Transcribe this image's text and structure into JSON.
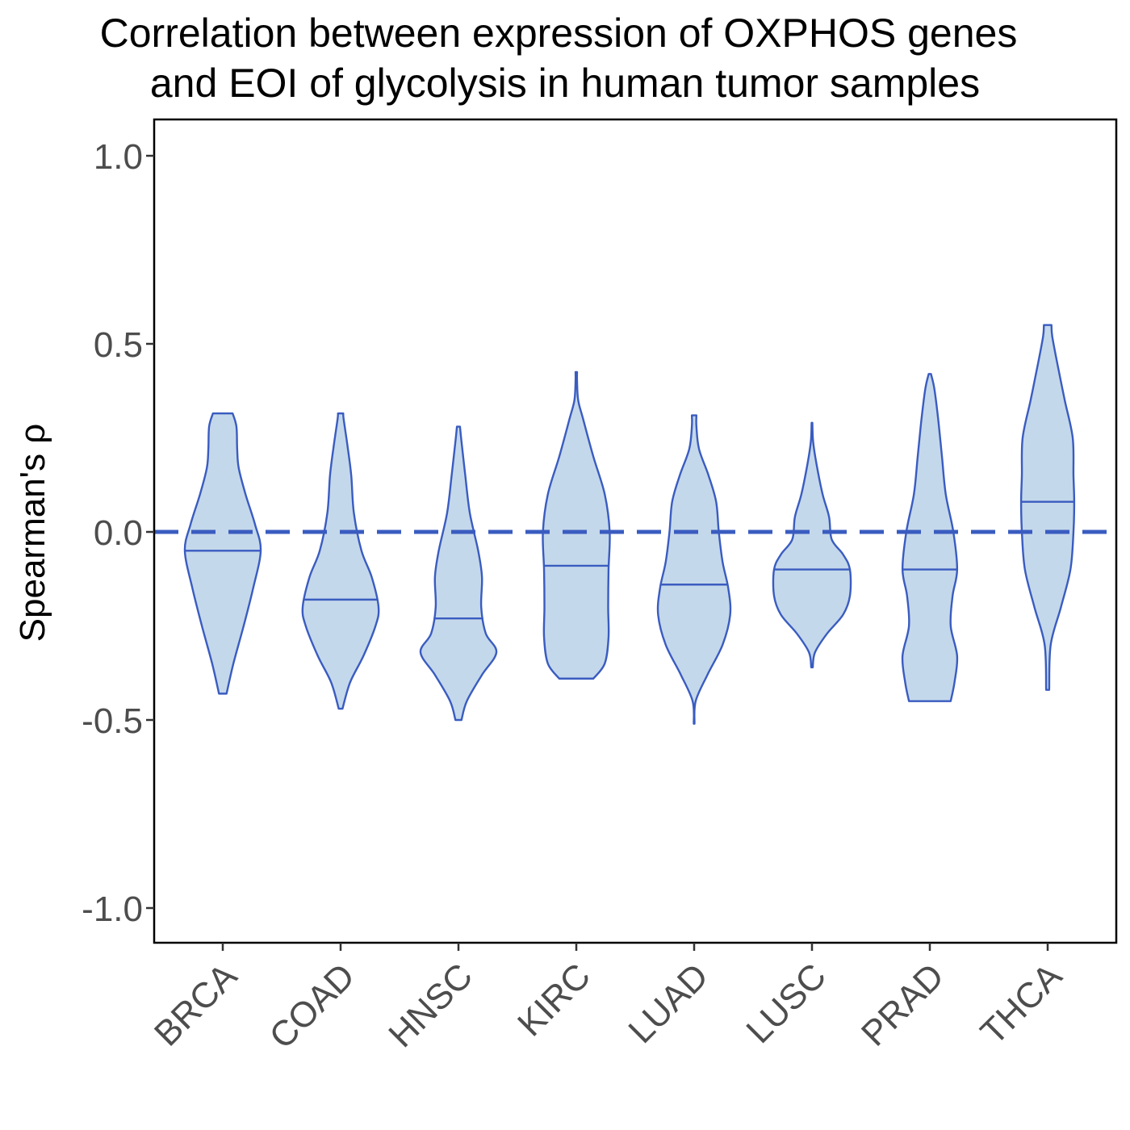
{
  "chart_data": {
    "type": "violin",
    "title": [
      "Correlation between expression of OXPHOS genes",
      "and EOI of glycolysis in human tumor samples"
    ],
    "xlabel": "",
    "ylabel": "Spearman's  ρ",
    "ylim": [
      -1.1,
      1.1
    ],
    "yticks": [
      1.0,
      0.5,
      0.0,
      -0.5,
      -1.0
    ],
    "ytick_labels": [
      "1.0",
      "0.5",
      "0.0",
      "-0.5",
      "-1.0"
    ],
    "reference_line": {
      "y": 0.0,
      "style": "dashed"
    },
    "grid": false,
    "legend": "none",
    "colors": {
      "fill": "#c4d8eb",
      "stroke": "#3a5cc0",
      "refline": "#3a5cc0"
    },
    "categories": [
      "BRCA",
      "COAD",
      "HNSC",
      "KIRC",
      "LUAD",
      "LUSC",
      "PRAD",
      "THCA"
    ],
    "series": [
      {
        "category": "BRCA",
        "min": -0.43,
        "max": 0.315,
        "median": -0.05,
        "profile": [
          [
            -0.43,
            0.1
          ],
          [
            -0.35,
            0.28
          ],
          [
            -0.25,
            0.55
          ],
          [
            -0.15,
            0.8
          ],
          [
            -0.05,
            1.0
          ],
          [
            0.02,
            0.85
          ],
          [
            0.1,
            0.6
          ],
          [
            0.17,
            0.42
          ],
          [
            0.22,
            0.38
          ],
          [
            0.28,
            0.36
          ],
          [
            0.315,
            0.26
          ]
        ]
      },
      {
        "category": "COAD",
        "min": -0.47,
        "max": 0.315,
        "median": -0.18,
        "profile": [
          [
            -0.47,
            0.05
          ],
          [
            -0.4,
            0.25
          ],
          [
            -0.33,
            0.6
          ],
          [
            -0.25,
            0.92
          ],
          [
            -0.2,
            1.0
          ],
          [
            -0.12,
            0.82
          ],
          [
            -0.05,
            0.55
          ],
          [
            0.05,
            0.35
          ],
          [
            0.15,
            0.28
          ],
          [
            0.23,
            0.18
          ],
          [
            0.3,
            0.08
          ],
          [
            0.315,
            0.07
          ]
        ]
      },
      {
        "category": "HNSC",
        "min": -0.5,
        "max": 0.28,
        "median": -0.23,
        "profile": [
          [
            -0.5,
            0.08
          ],
          [
            -0.45,
            0.22
          ],
          [
            -0.38,
            0.62
          ],
          [
            -0.32,
            1.0
          ],
          [
            -0.27,
            0.72
          ],
          [
            -0.2,
            0.6
          ],
          [
            -0.12,
            0.62
          ],
          [
            -0.05,
            0.52
          ],
          [
            0.05,
            0.3
          ],
          [
            0.15,
            0.18
          ],
          [
            0.24,
            0.08
          ],
          [
            0.28,
            0.04
          ]
        ]
      },
      {
        "category": "KIRC",
        "min": -0.39,
        "max": 0.425,
        "median": -0.09,
        "profile": [
          [
            -0.39,
            0.45
          ],
          [
            -0.35,
            0.75
          ],
          [
            -0.28,
            0.85
          ],
          [
            -0.2,
            0.84
          ],
          [
            -0.1,
            0.85
          ],
          [
            0.0,
            0.88
          ],
          [
            0.1,
            0.75
          ],
          [
            0.2,
            0.45
          ],
          [
            0.3,
            0.18
          ],
          [
            0.35,
            0.05
          ],
          [
            0.4,
            0.02
          ],
          [
            0.425,
            0.02
          ]
        ]
      },
      {
        "category": "LUAD",
        "min": -0.51,
        "max": 0.31,
        "median": -0.14,
        "profile": [
          [
            -0.51,
            0.01
          ],
          [
            -0.45,
            0.04
          ],
          [
            -0.38,
            0.35
          ],
          [
            -0.3,
            0.75
          ],
          [
            -0.22,
            0.95
          ],
          [
            -0.15,
            0.9
          ],
          [
            -0.08,
            0.75
          ],
          [
            0.0,
            0.65
          ],
          [
            0.08,
            0.58
          ],
          [
            0.15,
            0.38
          ],
          [
            0.22,
            0.13
          ],
          [
            0.28,
            0.06
          ],
          [
            0.31,
            0.06
          ]
        ]
      },
      {
        "category": "LUSC",
        "min": -0.36,
        "max": 0.29,
        "median": -0.1,
        "profile": [
          [
            -0.36,
            0.02
          ],
          [
            -0.32,
            0.08
          ],
          [
            -0.27,
            0.4
          ],
          [
            -0.22,
            0.82
          ],
          [
            -0.17,
            1.0
          ],
          [
            -0.1,
            1.0
          ],
          [
            -0.06,
            0.82
          ],
          [
            -0.02,
            0.52
          ],
          [
            0.04,
            0.45
          ],
          [
            0.1,
            0.28
          ],
          [
            0.18,
            0.12
          ],
          [
            0.24,
            0.03
          ],
          [
            0.29,
            0.01
          ]
        ]
      },
      {
        "category": "PRAD",
        "min": -0.45,
        "max": 0.42,
        "median": -0.1,
        "profile": [
          [
            -0.45,
            0.55
          ],
          [
            -0.4,
            0.65
          ],
          [
            -0.33,
            0.72
          ],
          [
            -0.25,
            0.55
          ],
          [
            -0.17,
            0.6
          ],
          [
            -0.1,
            0.72
          ],
          [
            0.0,
            0.62
          ],
          [
            0.1,
            0.42
          ],
          [
            0.2,
            0.32
          ],
          [
            0.3,
            0.22
          ],
          [
            0.38,
            0.12
          ],
          [
            0.42,
            0.03
          ]
        ]
      },
      {
        "category": "THCA",
        "min": -0.42,
        "max": 0.55,
        "median": 0.08,
        "profile": [
          [
            -0.42,
            0.04
          ],
          [
            -0.3,
            0.08
          ],
          [
            -0.2,
            0.35
          ],
          [
            -0.1,
            0.6
          ],
          [
            0.0,
            0.68
          ],
          [
            0.08,
            0.7
          ],
          [
            0.15,
            0.68
          ],
          [
            0.25,
            0.66
          ],
          [
            0.35,
            0.45
          ],
          [
            0.45,
            0.25
          ],
          [
            0.52,
            0.12
          ],
          [
            0.55,
            0.1
          ]
        ]
      }
    ]
  }
}
